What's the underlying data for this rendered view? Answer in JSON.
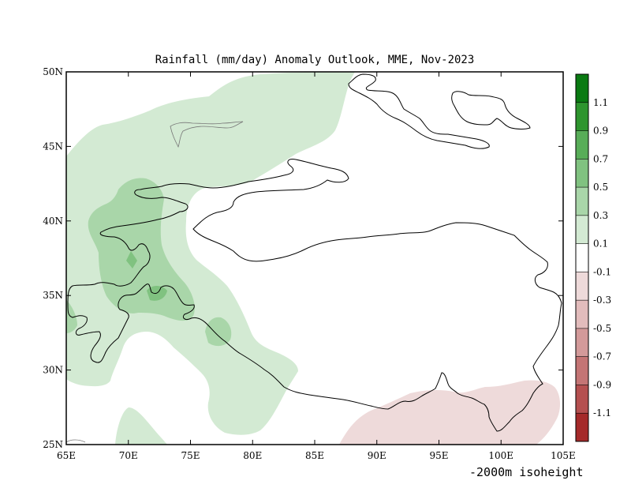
{
  "chart_data": {
    "type": "heatmap",
    "title": "Rainfall (mm/day) Anomaly Outlook, MME, Nov-2023",
    "x_range": [
      65,
      105
    ],
    "y_range": [
      25,
      50
    ],
    "x_ticks": [
      65,
      70,
      75,
      80,
      85,
      90,
      95,
      100,
      105
    ],
    "x_tick_labels": [
      "65E",
      "70E",
      "75E",
      "80E",
      "85E",
      "90E",
      "95E",
      "100E",
      "105E"
    ],
    "y_ticks": [
      25,
      30,
      35,
      40,
      45,
      50
    ],
    "y_tick_labels": [
      "25N",
      "30N",
      "35N",
      "40N",
      "45N",
      "50N"
    ],
    "grid": false,
    "legend_position": "right",
    "colorbar": {
      "boundaries": [
        -1.1,
        -0.9,
        -0.7,
        -0.5,
        -0.3,
        -0.1,
        0.1,
        0.3,
        0.5,
        0.7,
        0.9,
        1.1
      ],
      "labels": [
        "1.1",
        "0.9",
        "0.7",
        "0.5",
        "0.3",
        "0.1",
        "-0.1",
        "-0.3",
        "-0.5",
        "-0.7",
        "-0.9",
        "-1.1"
      ],
      "colors_top_to_bottom": [
        "#0a7a12",
        "#2e952e",
        "#58ad58",
        "#80c280",
        "#a9d6a9",
        "#d3ead3",
        "#ffffff",
        "#eedada",
        "#e2bcbc",
        "#d39a9a",
        "#c47575",
        "#b55050",
        "#a52a2a"
      ]
    },
    "regions": [
      {
        "anomaly_range": [
          0.1,
          0.3
        ],
        "description": "broad light green band over western Asia and Himalaya foothills"
      },
      {
        "anomaly_range": [
          0.3,
          0.5
        ],
        "description": "Pamir / Hindu Kush and western Himalaya"
      },
      {
        "anomaly_range": [
          0.5,
          0.7
        ],
        "description": "small cores near 71.5E 37.5N and 72E 35N"
      },
      {
        "anomaly_range": [
          -0.3,
          -0.1
        ],
        "description": "southeastern Tibetan Plateau edge, 88E-104E, 25N-29N"
      }
    ],
    "caption": "-2000m isoheight"
  }
}
